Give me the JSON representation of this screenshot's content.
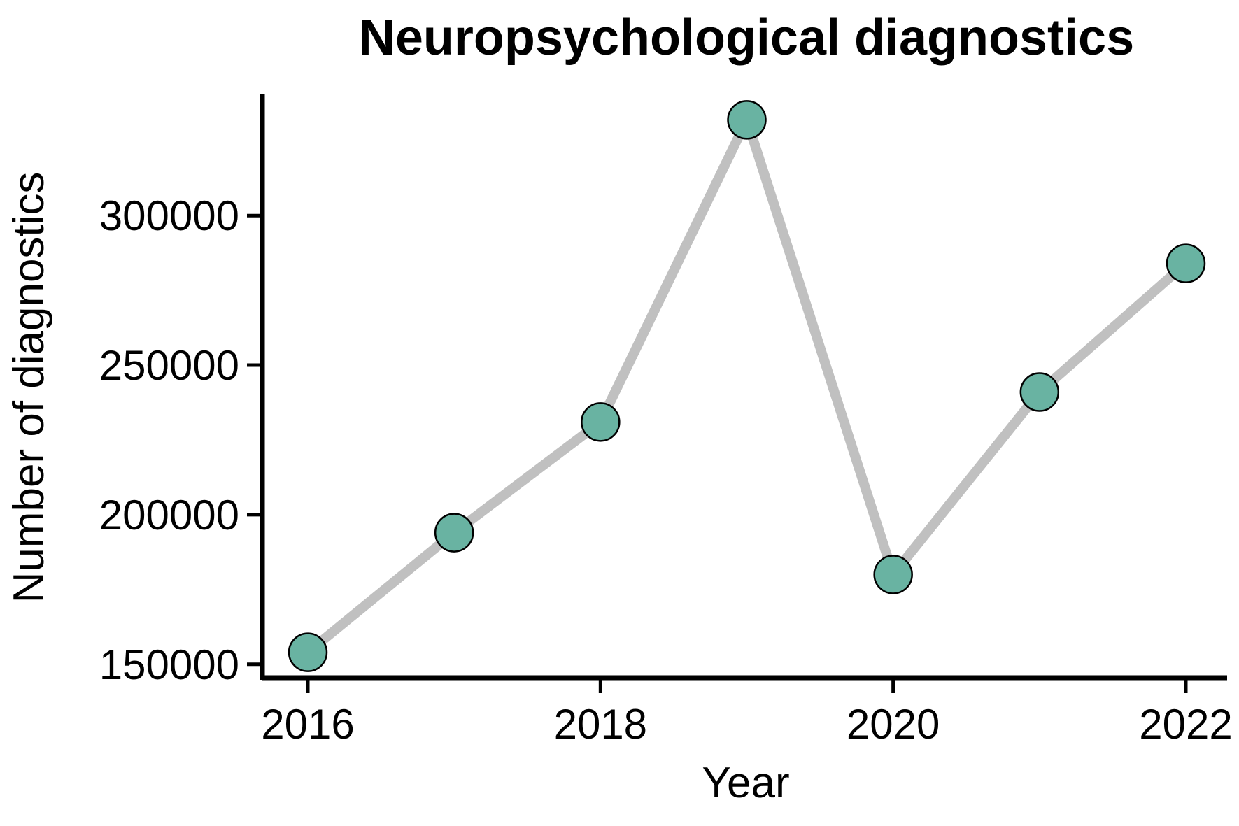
{
  "chart_data": {
    "type": "line",
    "title": "Neuropsychological diagnostics",
    "xlabel": "Year",
    "ylabel": "Number of diagnostics",
    "x": [
      2016,
      2017,
      2018,
      2019,
      2020,
      2021,
      2022
    ],
    "values": [
      154000,
      194000,
      231000,
      332000,
      180000,
      241000,
      284000
    ],
    "x_ticks": [
      2016,
      2018,
      2020,
      2022
    ],
    "y_ticks": [
      150000,
      200000,
      250000,
      300000
    ],
    "x_tick_labels": [
      "2016",
      "2018",
      "2020",
      "2022"
    ],
    "y_tick_labels": [
      "150000",
      "200000",
      "250000",
      "300000"
    ],
    "xlim": [
      2015.85,
      2022.15
    ],
    "ylim": [
      145500,
      340500
    ],
    "grid": false,
    "legend": "none",
    "colors": {
      "line": "#c0c0c0",
      "marker_fill": "#69b3a2",
      "marker_edge": "#000000",
      "axis": "#000000"
    }
  }
}
